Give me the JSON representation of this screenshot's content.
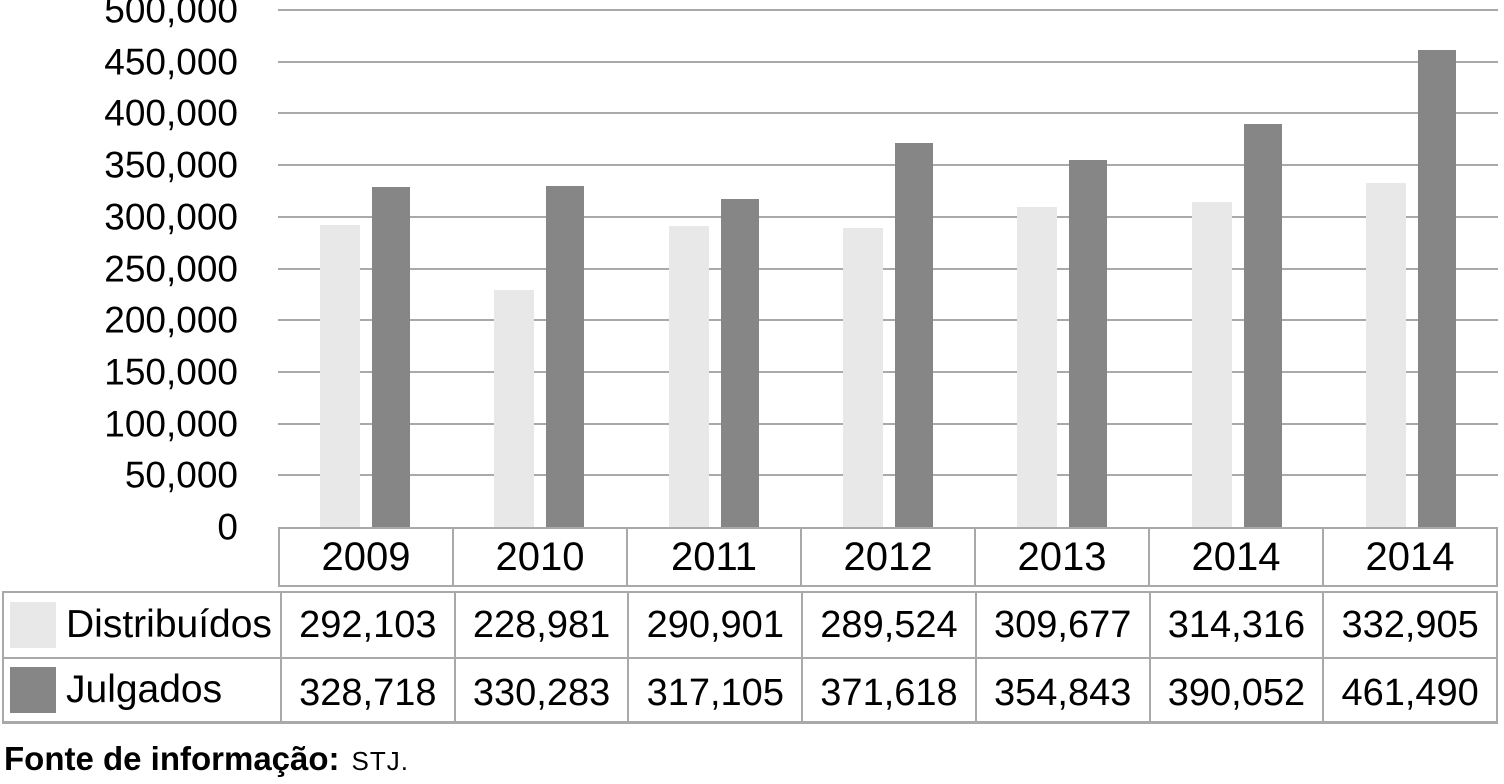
{
  "chart_data": {
    "type": "bar",
    "title": "",
    "xlabel": "",
    "ylabel": "",
    "categories": [
      "2009",
      "2010",
      "2011",
      "2012",
      "2013",
      "2014",
      "2014"
    ],
    "series": [
      {
        "key": "distribuidos",
        "name": "Distribuídos",
        "color": "#e8e8e8",
        "values": [
          292103,
          228981,
          290901,
          289524,
          309677,
          314316,
          332905
        ]
      },
      {
        "key": "julgados",
        "name": "Julgados",
        "color": "#868686",
        "values": [
          328718,
          330283,
          317105,
          371618,
          354843,
          390052,
          461490
        ]
      }
    ],
    "ylim": [
      0,
      500000
    ],
    "ytick_step": 50000,
    "grid": true,
    "legend_position": "table-left",
    "grid_color": "#a9a9a9",
    "border_color": "#a9a9a9"
  },
  "footer": {
    "source_label": "Fonte de informação:",
    "source_value": "STJ."
  }
}
